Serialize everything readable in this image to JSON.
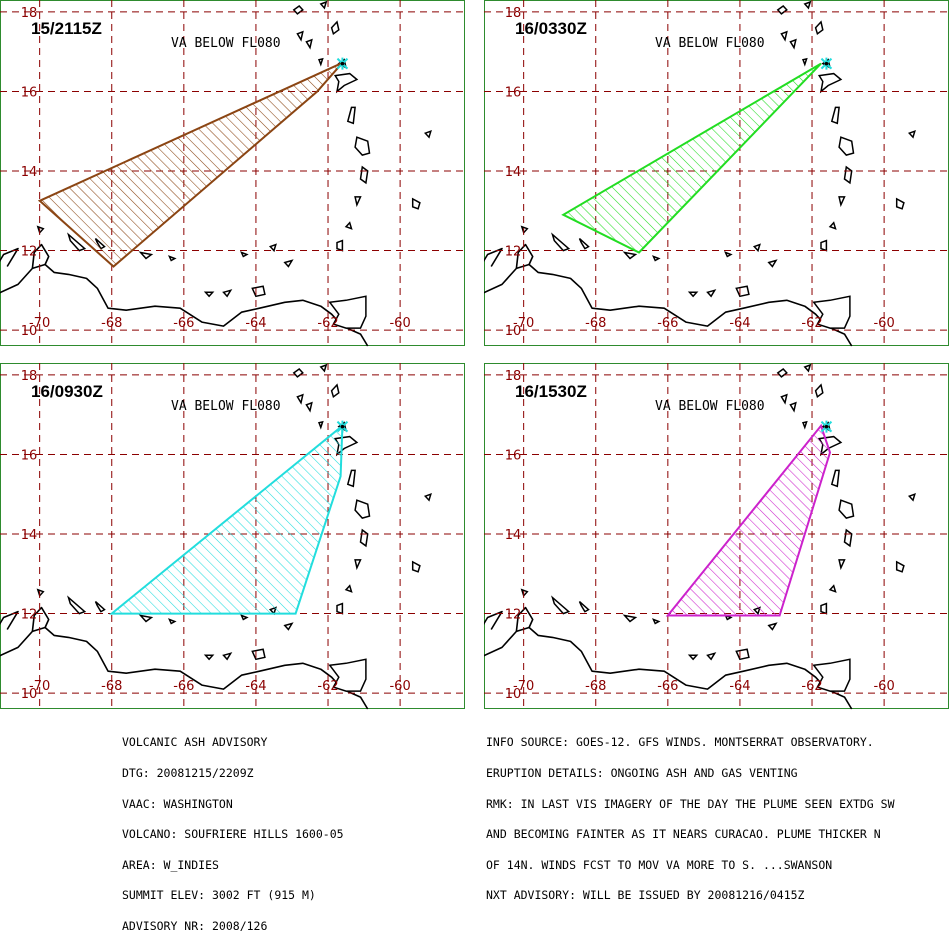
{
  "map": {
    "lon_ticks": [
      -70,
      -68,
      -66,
      -64,
      -62,
      -60
    ],
    "lat_ticks": [
      18,
      16,
      14,
      12,
      10
    ],
    "lon_range": [
      -71.1,
      -58.2
    ],
    "lat_range": [
      9.6,
      18.3
    ],
    "volcano": {
      "lon": -61.6,
      "lat": 16.7
    },
    "coast_color": "#000000",
    "grid_color": "#8b0000"
  },
  "panels": [
    {
      "time": "15/2115Z",
      "level": "VA BELOW FL080",
      "color": "#8b4513",
      "polygon": [
        [
          -61.6,
          16.72
        ],
        [
          -62.3,
          16.0
        ],
        [
          -67.95,
          11.6
        ],
        [
          -70.0,
          13.25
        ],
        [
          -61.6,
          16.72
        ]
      ]
    },
    {
      "time": "16/0330Z",
      "level": "VA BELOW FL080",
      "color": "#22dd22",
      "polygon": [
        [
          -61.75,
          16.7
        ],
        [
          -66.8,
          11.95
        ],
        [
          -68.9,
          12.9
        ],
        [
          -61.75,
          16.7
        ]
      ]
    },
    {
      "time": "16/0930Z",
      "level": "VA BELOW FL080",
      "color": "#22dddd",
      "polygon": [
        [
          -61.6,
          16.72
        ],
        [
          -61.65,
          15.45
        ],
        [
          -62.9,
          12.0
        ],
        [
          -64.8,
          12.0
        ],
        [
          -68.0,
          12.0
        ],
        [
          -61.6,
          16.72
        ]
      ]
    },
    {
      "time": "16/1530Z",
      "level": "VA BELOW FL080",
      "color": "#cc22cc",
      "polygon": [
        [
          -61.75,
          16.72
        ],
        [
          -61.5,
          16.05
        ],
        [
          -62.9,
          11.95
        ],
        [
          -66.0,
          11.95
        ],
        [
          -61.75,
          16.72
        ]
      ]
    }
  ],
  "advisory_left": [
    "VOLCANIC ASH ADVISORY",
    "DTG: 20081215/2209Z",
    "VAAC: WASHINGTON",
    "VOLCANO: SOUFRIERE HILLS 1600-05",
    "AREA: W_INDIES",
    "SUMMIT ELEV: 3002 FT (915 M)",
    "ADVISORY NR: 2008/126"
  ],
  "advisory_right": [
    "INFO SOURCE: GOES-12. GFS WINDS. MONTSERRAT OBSERVATORY.",
    "ERUPTION DETAILS: ONGOING ASH AND GAS VENTING",
    "RMK: IN LAST VIS IMAGERY OF THE DAY THE PLUME SEEN EXTDG SW",
    "AND BECOMING FAINTER AS IT NEARS CURACAO. PLUME THICKER N",
    "OF 14N. WINDS FCST TO MOV VA MORE TO S. ...SWANSON",
    "NXT ADVISORY: WILL BE ISSUED BY 20081216/0415Z"
  ]
}
